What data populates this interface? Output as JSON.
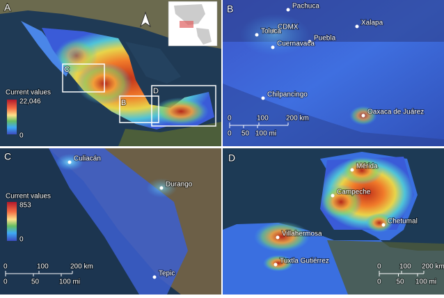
{
  "panels": [
    {
      "letter": "A",
      "legend": {
        "title": "Current values",
        "max": "22,046",
        "min": "0"
      },
      "boxes": [
        "C",
        "B",
        "D"
      ]
    },
    {
      "letter": "B",
      "places": [
        "Pachuca",
        "CDMX",
        "Toluca",
        "Puebla",
        "Xalapa",
        "Cuernavaca",
        "Chilpancingo",
        "Oaxaca de Juárez"
      ],
      "scale": {
        "km": [
          "0",
          "100",
          "200 km"
        ],
        "mi": [
          "0",
          "50",
          "100 mi"
        ]
      }
    },
    {
      "letter": "C",
      "places": [
        "Culiacán",
        "Durango",
        "Tepic"
      ],
      "legend": {
        "title": "Current values",
        "max": "853",
        "min": "0"
      },
      "scale": {
        "km": [
          "0",
          "100",
          "200 km"
        ],
        "mi": [
          "0",
          "50",
          "100 mi"
        ]
      }
    },
    {
      "letter": "D",
      "places": [
        "Mérida",
        "Campeche",
        "Chetumal",
        "Villahermosa",
        "Tuxtla Gutiérrez"
      ],
      "scale": {
        "km": [
          "0",
          "100",
          "200 km"
        ],
        "mi": [
          "0",
          "50",
          "100 mi"
        ]
      }
    }
  ]
}
